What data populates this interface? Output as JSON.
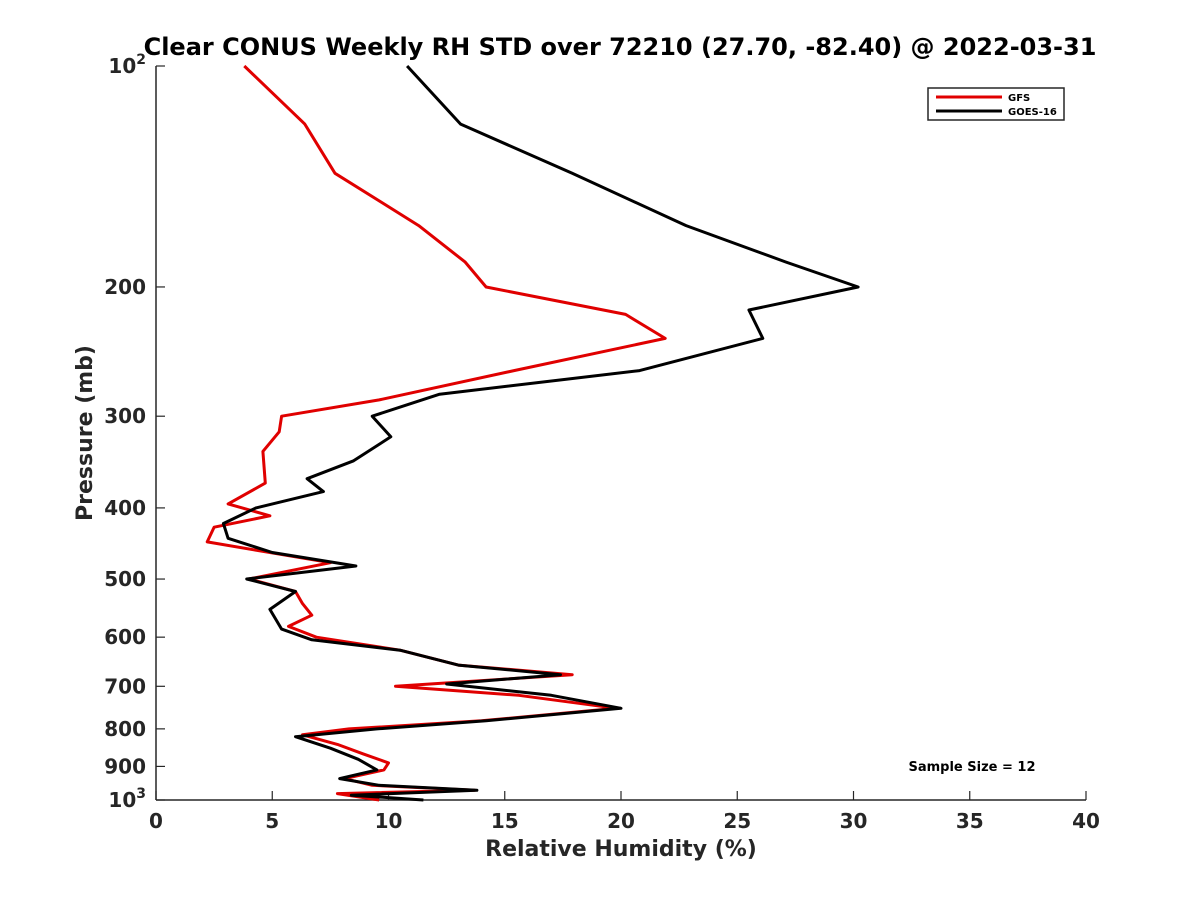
{
  "chart_data": {
    "type": "line",
    "title": "Clear CONUS Weekly RH STD over 72210 (27.70, -82.40) @ 2022-03-31",
    "xlabel": "Relative Humidity (%)",
    "ylabel": "Pressure (mb)",
    "xlim": [
      0,
      40
    ],
    "ylim": [
      100,
      1000
    ],
    "y_scale": "log",
    "y_reversed": true,
    "x_ticks": [
      "0",
      "5",
      "10",
      "15",
      "20",
      "25",
      "30",
      "35",
      "40"
    ],
    "y_ticks": [
      {
        "value": 100,
        "base": "10",
        "exp": "2"
      },
      {
        "value": 200,
        "label": "200"
      },
      {
        "value": 300,
        "label": "300"
      },
      {
        "value": 400,
        "label": "400"
      },
      {
        "value": 500,
        "label": "500"
      },
      {
        "value": 600,
        "label": "600"
      },
      {
        "value": 700,
        "label": "700"
      },
      {
        "value": 800,
        "label": "800"
      },
      {
        "value": 900,
        "label": "900"
      },
      {
        "value": 1000,
        "base": "10",
        "exp": "3"
      }
    ],
    "legend_position": "top-right",
    "grid": false,
    "annotation": "Sample Size = 12",
    "series": [
      {
        "name": "GFS",
        "color": "#e00000",
        "x": [
          3.8,
          6.4,
          7.7,
          11.3,
          13.3,
          14.2,
          20.2,
          21.9,
          15.4,
          9.6,
          5.4,
          5.3,
          4.6,
          4.7,
          3.1,
          4.9,
          2.5,
          2.2,
          7.5,
          4.0,
          6.0,
          6.3,
          6.7,
          5.7,
          6.9,
          10.5,
          13.0,
          17.9,
          10.3,
          15.6,
          19.8,
          14.0,
          8.3,
          6.3,
          7.8,
          8.9,
          10.0,
          9.8,
          8.1,
          9.3,
          13.7,
          7.8,
          9.6
        ],
        "y": [
          100,
          120,
          140,
          165,
          185,
          200,
          218,
          235,
          260,
          285,
          300,
          315,
          335,
          370,
          395,
          410,
          425,
          445,
          475,
          500,
          520,
          540,
          560,
          580,
          600,
          625,
          655,
          675,
          700,
          720,
          750,
          780,
          800,
          815,
          840,
          865,
          890,
          910,
          935,
          955,
          970,
          980,
          1000
        ]
      },
      {
        "name": "GOES-16",
        "color": "#000000",
        "x": [
          10.8,
          13.1,
          17.9,
          22.8,
          27.1,
          30.2,
          25.5,
          26.1,
          20.8,
          12.2,
          9.3,
          10.1,
          8.5,
          6.5,
          7.2,
          4.3,
          2.9,
          3.1,
          5.0,
          8.6,
          3.9,
          6.0,
          4.9,
          5.4,
          6.7,
          10.5,
          13.0,
          17.4,
          12.5,
          17.0,
          20.0,
          14.2,
          9.5,
          6.0,
          7.5,
          8.7,
          9.5,
          7.9,
          9.6,
          13.8,
          8.4,
          11.5
        ],
        "y": [
          100,
          120,
          140,
          165,
          185,
          200,
          215,
          235,
          260,
          280,
          300,
          320,
          345,
          365,
          380,
          400,
          420,
          440,
          460,
          480,
          500,
          520,
          550,
          585,
          605,
          625,
          655,
          675,
          695,
          720,
          750,
          780,
          800,
          820,
          850,
          880,
          910,
          935,
          955,
          970,
          985,
          1000
        ]
      }
    ]
  }
}
